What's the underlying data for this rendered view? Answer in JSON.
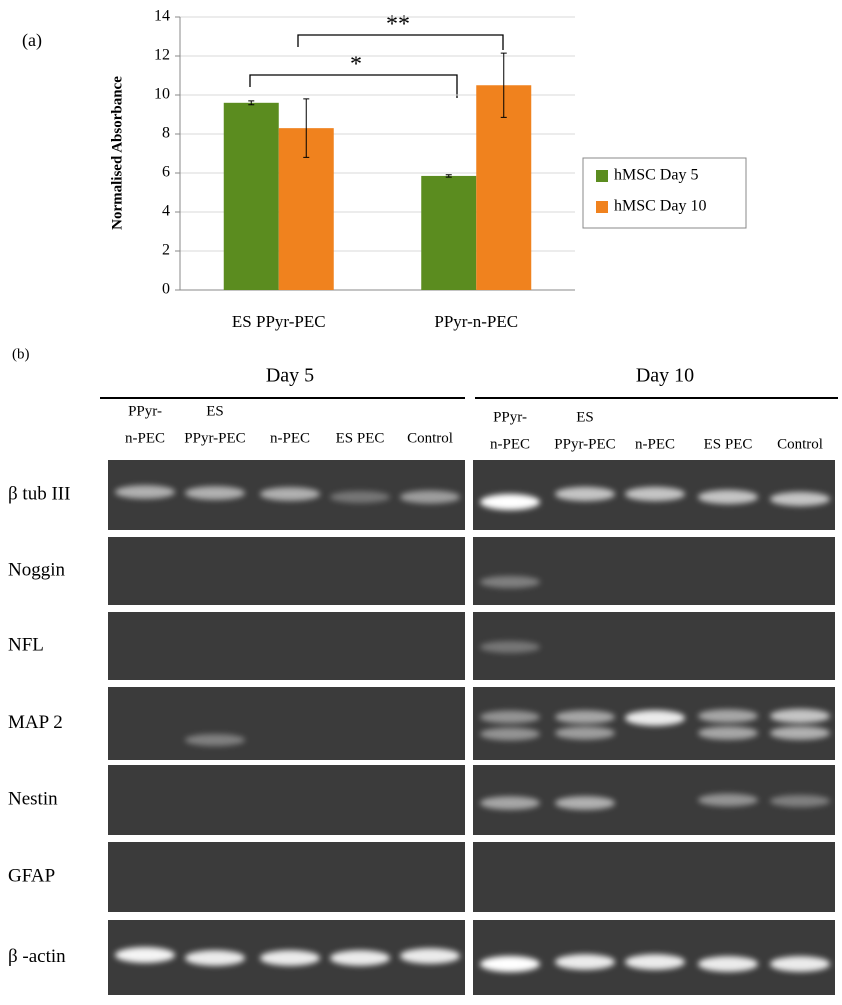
{
  "chart_data": {
    "type": "bar",
    "panel_label": "(a)",
    "y_label": "Normalised Absorbance",
    "categories": [
      "ES PPyr-PEC",
      "PPyr-n-PEC"
    ],
    "series": [
      {
        "name": "hMSC Day 5",
        "color": "#5b8c1f",
        "values": [
          9.6,
          5.85
        ],
        "errors": [
          0.1,
          0.06
        ]
      },
      {
        "name": "hMSC Day 10",
        "color": "#f0821e",
        "values": [
          8.3,
          10.5
        ],
        "errors": [
          1.5,
          1.65
        ]
      }
    ],
    "ylim": [
      0,
      14
    ],
    "yticks": [
      0,
      2,
      4,
      6,
      8,
      10,
      12,
      14
    ],
    "annotations": [
      "*",
      "**"
    ],
    "legend": "right"
  },
  "panel_b": {
    "label": "(b)",
    "groups": [
      {
        "title": "Day 5",
        "lanes": [
          [
            "PPyr-",
            "n-PEC"
          ],
          [
            "ES",
            "PPyr-PEC"
          ],
          [
            "n-PEC"
          ],
          [
            "ES PEC"
          ],
          [
            "Control"
          ]
        ]
      },
      {
        "title": "Day 10",
        "lanes": [
          [
            "PPyr-",
            "n-PEC"
          ],
          [
            "ES",
            "PPyr-PEC"
          ],
          [
            "n-PEC"
          ],
          [
            "ES PEC"
          ],
          [
            "Control"
          ]
        ]
      }
    ],
    "genes": [
      "β tub III",
      "Noggin",
      "NFL",
      "MAP 2",
      "Nestin",
      "GFAP",
      "β -actin"
    ]
  }
}
